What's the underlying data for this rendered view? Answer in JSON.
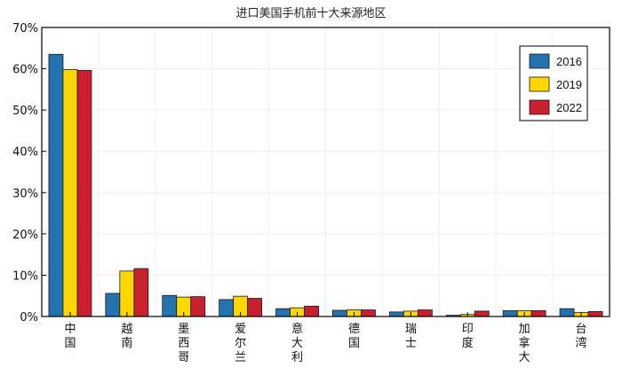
{
  "chart_data": {
    "type": "bar",
    "title": "进口美国手机前十大来源地区",
    "categories": [
      "中国",
      "越南",
      "墨西哥",
      "爱尔兰",
      "意大利",
      "德国",
      "瑞士",
      "印度",
      "加拿大",
      "台湾"
    ],
    "ylim": [
      0,
      70
    ],
    "yticks": [
      0,
      10,
      20,
      30,
      40,
      50,
      60,
      70
    ],
    "ytick_labels": [
      "0%",
      "10%",
      "20%",
      "30%",
      "40%",
      "50%",
      "60%",
      "70%"
    ],
    "xlabel": "",
    "ylabel": "",
    "grid": true,
    "legend_position": "top-right",
    "series": [
      {
        "name": "2016",
        "color": "#2472B0",
        "values": [
          63.5,
          5.6,
          5.1,
          4.1,
          1.9,
          1.5,
          1.1,
          0.3,
          1.4,
          1.9
        ]
      },
      {
        "name": "2019",
        "color": "#FFD700",
        "values": [
          59.8,
          11.0,
          4.7,
          4.9,
          2.1,
          1.6,
          1.3,
          0.5,
          1.4,
          1.0
        ]
      },
      {
        "name": "2022",
        "color": "#C8202F",
        "values": [
          59.6,
          11.6,
          4.8,
          4.4,
          2.5,
          1.6,
          1.6,
          1.3,
          1.4,
          1.2
        ]
      }
    ]
  }
}
